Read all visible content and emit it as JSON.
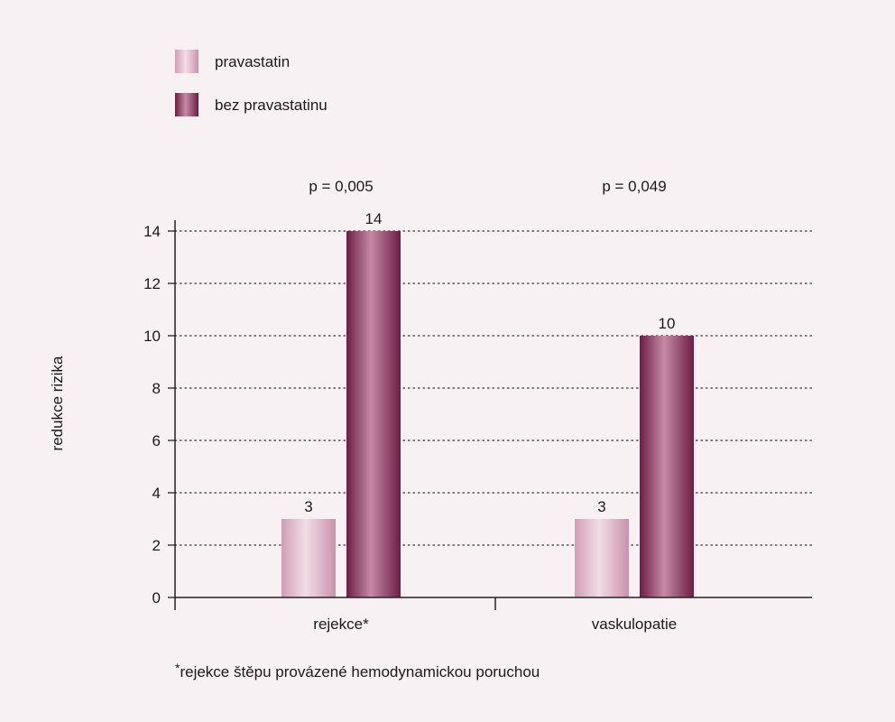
{
  "chart_data": {
    "type": "bar",
    "categories": [
      "rejekce*",
      "vaskulopatie"
    ],
    "series": [
      {
        "name": "pravastatin",
        "values": [
          3,
          3
        ],
        "color": "#dcb2c6"
      },
      {
        "name": "bez pravastatinu",
        "values": [
          14,
          10
        ],
        "color": "#8e2f5c"
      }
    ],
    "ylabel": "redukce rizika",
    "xlabel": "",
    "ylim": [
      0,
      14
    ],
    "yticks": [
      0,
      2,
      4,
      6,
      8,
      10,
      12,
      14
    ],
    "grid": "dotted horizontal",
    "legend_position": "top-left",
    "data_labels": [
      [
        "3",
        "14"
      ],
      [
        "3",
        "10"
      ]
    ],
    "annotations": [
      "p = 0,005",
      "p = 0,049"
    ]
  },
  "footnote": {
    "marker": "*",
    "text": "rejekce štěpu provázené hemodynamickou poruchou"
  }
}
